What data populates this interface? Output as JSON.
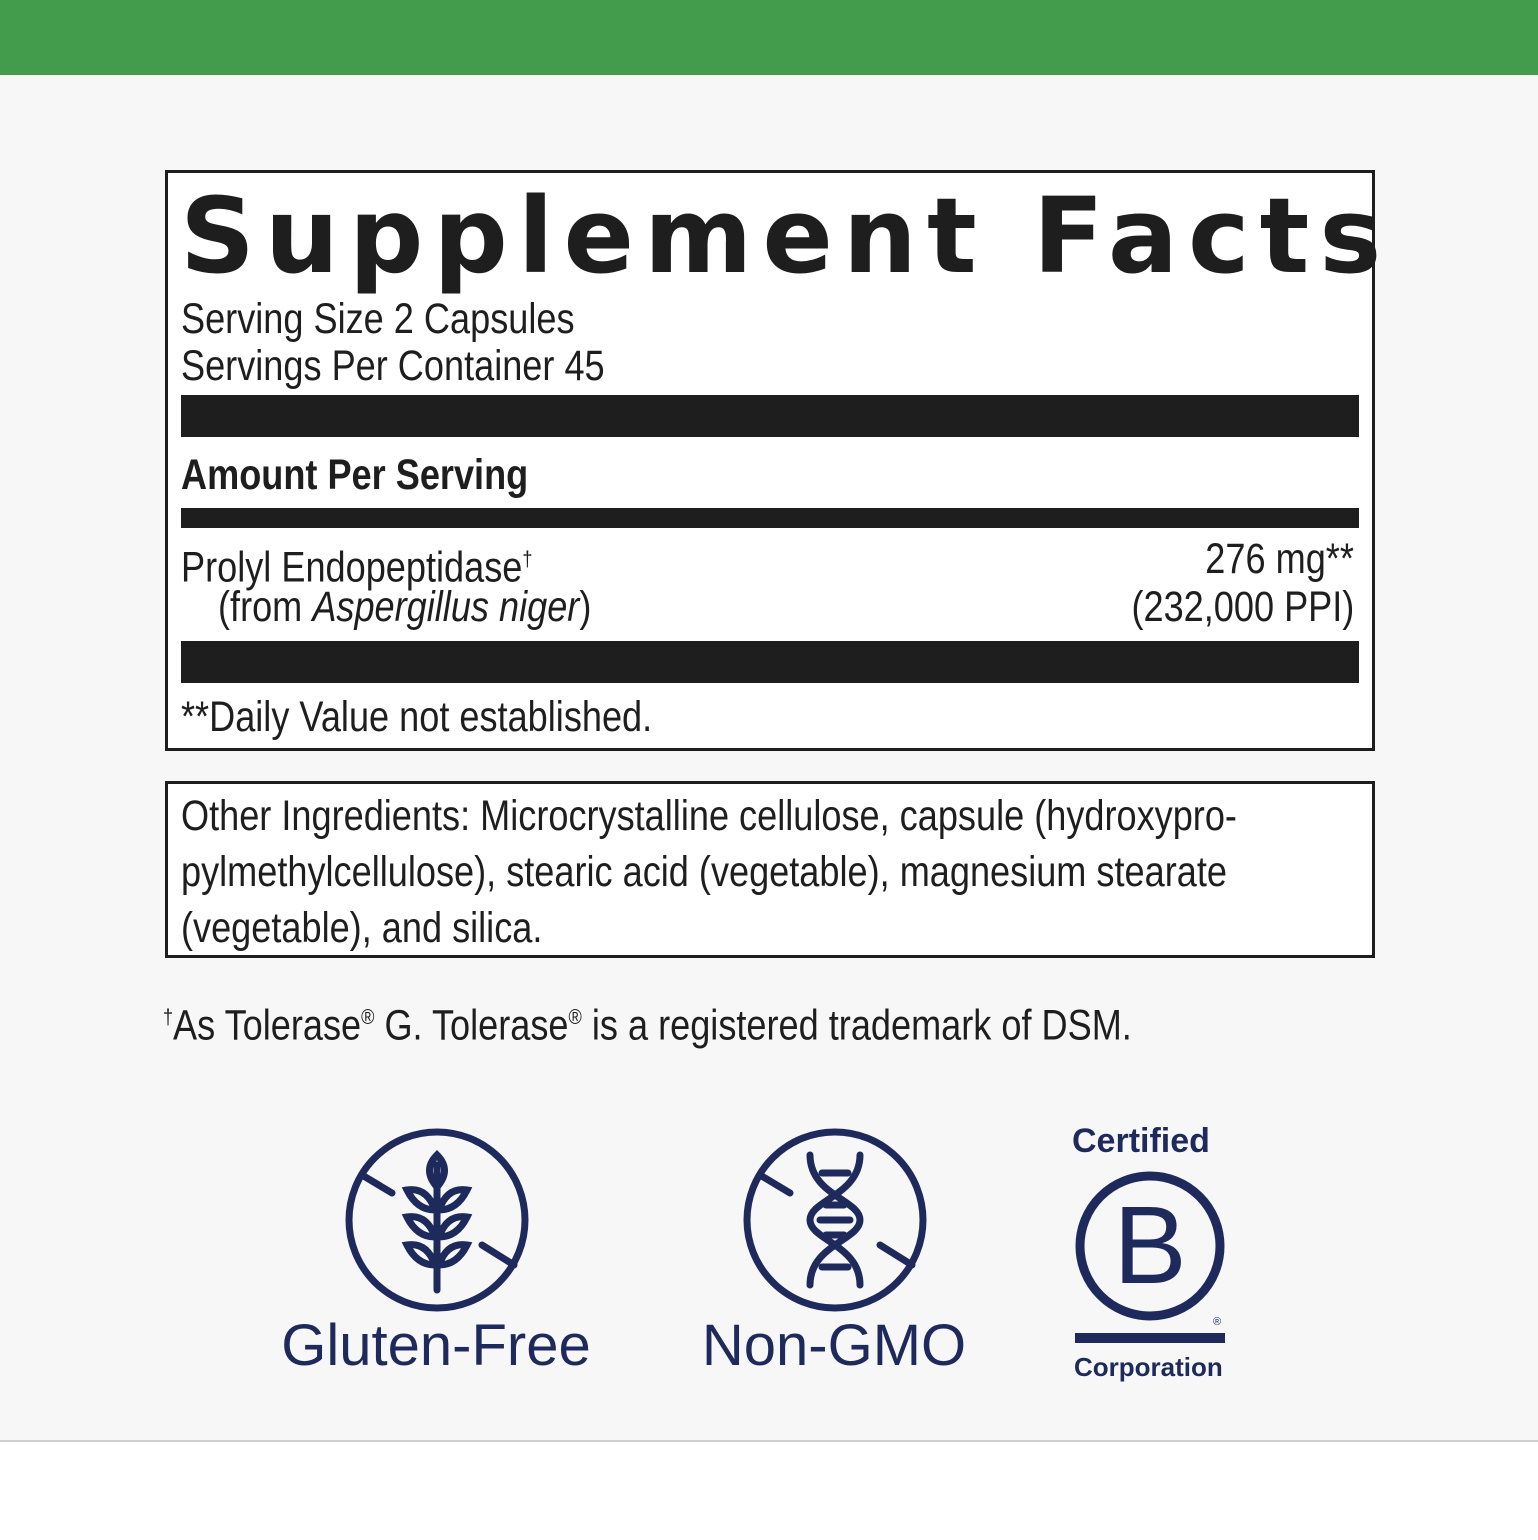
{
  "facts": {
    "title": "Supplement Facts",
    "serving_size": "Serving Size 2 Capsules",
    "servings_per_container": "Servings Per Container 45",
    "amount_header": "Amount Per Serving",
    "ingredient": {
      "name": "Prolyl Endopeptidase",
      "name_mark": "†",
      "source_prefix": "(from ",
      "source_species": "Aspergillus niger",
      "source_suffix": ")",
      "amount": "276 mg**",
      "activity": "(232,000 PPI)"
    },
    "daily_value_note": "**Daily Value not established."
  },
  "other_ingredients": {
    "lines": [
      "Other Ingredients: Microcrystalline cellulose, capsule (hydroxypro-",
      "pylmethylcellulose), stearic acid (vegetable), magnesium stearate",
      "(vegetable), and silica."
    ]
  },
  "footnote": {
    "mark": "†",
    "part1": "As Tolerase",
    "reg": "®",
    "part2": " G. Tolerase",
    "part3": " is a registered trademark of DSM."
  },
  "badges": [
    {
      "label": "Gluten-Free",
      "icon": "wheat-crossed-icon"
    },
    {
      "label": "Non-GMO",
      "icon": "dna-crossed-icon"
    },
    {
      "top": "Certified",
      "letter": "B",
      "bottom": "Corporation",
      "reg": "®",
      "icon": "b-corp-logo"
    }
  ],
  "colors": {
    "brand_green": "#439c4c",
    "badge_navy": "#1f2a5c",
    "text": "#1e1e1e"
  }
}
